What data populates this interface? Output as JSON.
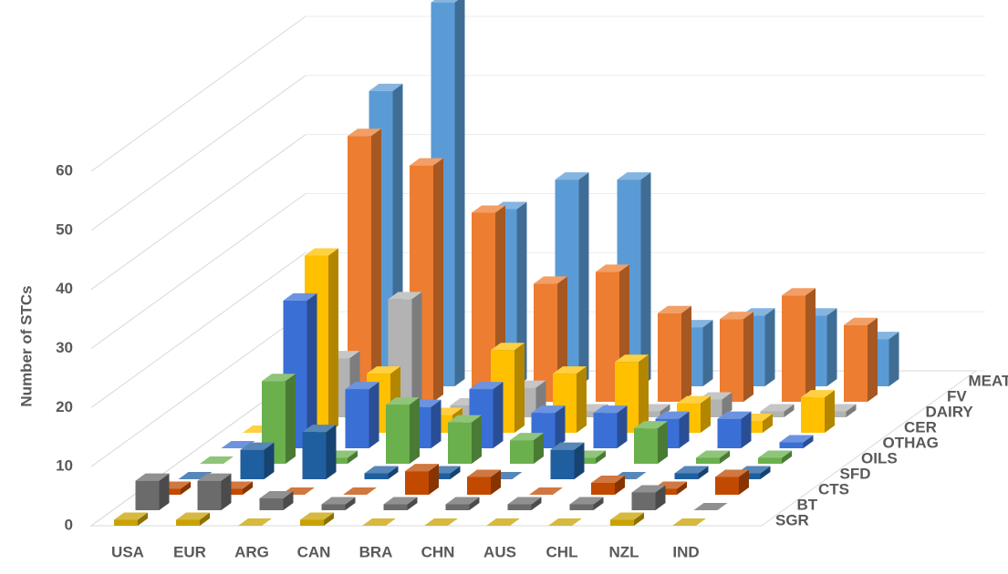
{
  "chart_data": {
    "type": "bar3d",
    "ylabel": "Number of STCs",
    "categories": [
      "USA",
      "EUR",
      "ARG",
      "CAN",
      "BRA",
      "CHN",
      "AUS",
      "CHL",
      "NZL",
      "IND"
    ],
    "series": [
      {
        "name": "SGR",
        "color": "#c9a100",
        "values": [
          1,
          1,
          0,
          1,
          0,
          0,
          0,
          0,
          1,
          0
        ]
      },
      {
        "name": "BT",
        "color": "#6b6b6b",
        "values": [
          5,
          5,
          2,
          1,
          1,
          1,
          1,
          1,
          3,
          0
        ]
      },
      {
        "name": "CTS",
        "color": "#c14a00",
        "values": [
          1,
          1,
          0,
          0,
          4,
          3,
          0,
          2,
          1,
          3
        ]
      },
      {
        "name": "SFD",
        "color": "#1f5fa0",
        "values": [
          0,
          5,
          8,
          1,
          1,
          0,
          5,
          0,
          1,
          1
        ]
      },
      {
        "name": "OILS",
        "color": "#6ab04c",
        "values": [
          0,
          14,
          1,
          10,
          7,
          4,
          1,
          6,
          1,
          1
        ]
      },
      {
        "name": "OTHAG",
        "color": "#3a6fd6",
        "values": [
          0,
          25,
          10,
          7,
          10,
          6,
          6,
          5,
          5,
          1
        ]
      },
      {
        "name": "CER",
        "color": "#ffc000",
        "values": [
          0,
          30,
          10,
          3,
          14,
          10,
          12,
          5,
          2,
          6
        ]
      },
      {
        "name": "DAIRY",
        "color": "#b3b3b3",
        "values": [
          0,
          10,
          20,
          2,
          5,
          1,
          1,
          3,
          1,
          1
        ]
      },
      {
        "name": "FV",
        "color": "#ed7d31",
        "values": [
          0,
          45,
          40,
          32,
          20,
          22,
          15,
          14,
          18,
          13
        ]
      },
      {
        "name": "MEAT",
        "color": "#5b9bd5",
        "values": [
          0,
          50,
          65,
          30,
          35,
          35,
          10,
          12,
          12,
          8
        ]
      }
    ],
    "ylim": [
      0,
      60
    ],
    "yticks": [
      0,
      10,
      20,
      30,
      40,
      50,
      60
    ],
    "grid": true
  }
}
